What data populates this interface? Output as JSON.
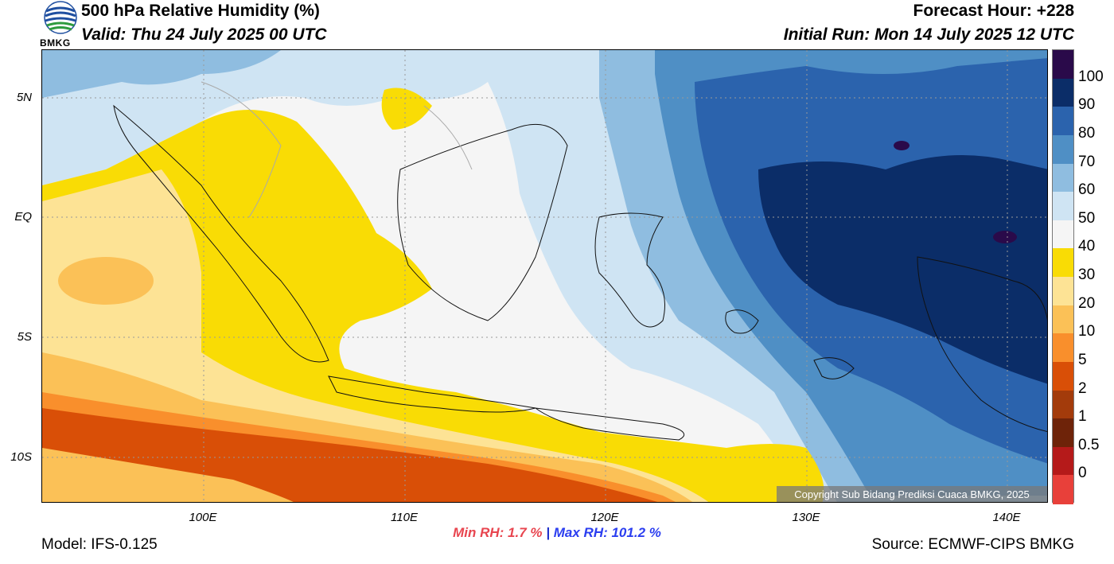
{
  "header": {
    "title": "500 hPa Relative Humidity (%)",
    "valid": "Valid: Thu 24 July 2025 00 UTC",
    "forecast_hour": "Forecast Hour: +228",
    "initial_run": "Initial Run: Mon 14 July 2025 12 UTC",
    "logo_text": "BMKG"
  },
  "map": {
    "lat_labels": [
      "5N",
      "EQ",
      "5S",
      "10S"
    ],
    "lon_labels": [
      "100E",
      "110E",
      "120E",
      "130E",
      "140E"
    ],
    "copyright": "Copyright Sub Bidang Prediksi Cuaca BMKG, 2025"
  },
  "colorbar": {
    "labels": [
      "100",
      "90",
      "80",
      "70",
      "60",
      "50",
      "40",
      "30",
      "20",
      "10",
      "5",
      "2",
      "1",
      "0.5",
      "0"
    ],
    "colors": [
      "#2a0a4a",
      "#0b2d68",
      "#2b63ad",
      "#4f8fc5",
      "#8fbde0",
      "#cfe4f3",
      "#f5f5f5",
      "#f9dc05",
      "#fde395",
      "#fbc157",
      "#f98f2c",
      "#d94f07",
      "#a33b0b",
      "#6e2309",
      "#b51a1a",
      "#e8403a"
    ]
  },
  "stats": {
    "min": "Min RH:   1.7 %",
    "separator": "|",
    "max": "Max RH: 101.2 %"
  },
  "footer": {
    "model": "Model: IFS-0.125",
    "source": "Source: ECMWF-CIPS BMKG"
  }
}
